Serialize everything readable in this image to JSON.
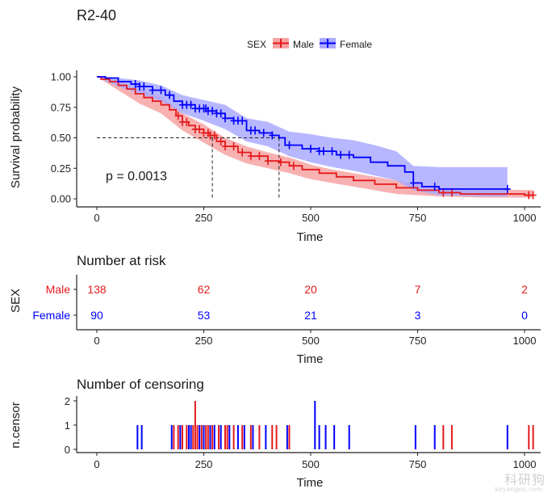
{
  "title": "R2-40",
  "legend": {
    "title": "SEX",
    "entries": [
      {
        "label": "Male",
        "color": "#e41a1c"
      },
      {
        "label": "Female",
        "color": "#0000ff"
      }
    ]
  },
  "colors": {
    "male": "#e41a1c",
    "female": "#0000ff",
    "male_fill": "#f7a3a3",
    "female_fill": "#aaaaff"
  },
  "pvalue": "p = 0.0013",
  "chart_data": [
    {
      "id": "survival",
      "type": "line",
      "title": "",
      "xlabel": "Time",
      "ylabel": "Survival probability",
      "xlim": [
        0,
        1030
      ],
      "ylim": [
        0,
        1.05
      ],
      "xticks": [
        0,
        250,
        500,
        750,
        1000
      ],
      "yticks": [
        0.0,
        0.25,
        0.5,
        0.75,
        1.0
      ],
      "ytick_labels": [
        "0.00",
        "0.25",
        "0.50",
        "0.75",
        "1.00"
      ],
      "median_lines": [
        {
          "series": "Male",
          "x": 270
        },
        {
          "series": "Female",
          "x": 426
        }
      ],
      "series": [
        {
          "name": "Male",
          "color": "#e41a1c",
          "steps": [
            [
              0,
              1.0
            ],
            [
              10,
              0.98
            ],
            [
              30,
              0.96
            ],
            [
              50,
              0.93
            ],
            [
              70,
              0.9
            ],
            [
              90,
              0.86
            ],
            [
              110,
              0.83
            ],
            [
              130,
              0.8
            ],
            [
              150,
              0.77
            ],
            [
              170,
              0.73
            ],
            [
              185,
              0.68
            ],
            [
              200,
              0.63
            ],
            [
              215,
              0.6
            ],
            [
              230,
              0.57
            ],
            [
              250,
              0.54
            ],
            [
              265,
              0.52
            ],
            [
              280,
              0.47
            ],
            [
              300,
              0.43
            ],
            [
              330,
              0.38
            ],
            [
              360,
              0.35
            ],
            [
              400,
              0.31
            ],
            [
              430,
              0.3
            ],
            [
              450,
              0.27
            ],
            [
              480,
              0.24
            ],
            [
              520,
              0.21
            ],
            [
              560,
              0.18
            ],
            [
              600,
              0.15
            ],
            [
              650,
              0.12
            ],
            [
              700,
              0.09
            ],
            [
              750,
              0.07
            ],
            [
              800,
              0.05
            ],
            [
              850,
              0.04
            ],
            [
              900,
              0.04
            ],
            [
              1000,
              0.03
            ],
            [
              1020,
              0.03
            ]
          ],
          "lower": [
            [
              0,
              1.0
            ],
            [
              50,
              0.89
            ],
            [
              100,
              0.78
            ],
            [
              150,
              0.7
            ],
            [
              200,
              0.56
            ],
            [
              250,
              0.46
            ],
            [
              300,
              0.36
            ],
            [
              350,
              0.29
            ],
            [
              400,
              0.25
            ],
            [
              450,
              0.21
            ],
            [
              500,
              0.16
            ],
            [
              550,
              0.13
            ],
            [
              600,
              0.1
            ],
            [
              650,
              0.07
            ],
            [
              700,
              0.04
            ],
            [
              750,
              0.03
            ],
            [
              800,
              0.02
            ],
            [
              900,
              0.01
            ],
            [
              1020,
              0.01
            ]
          ],
          "upper": [
            [
              0,
              1.0
            ],
            [
              50,
              0.97
            ],
            [
              100,
              0.9
            ],
            [
              150,
              0.84
            ],
            [
              200,
              0.7
            ],
            [
              250,
              0.61
            ],
            [
              300,
              0.5
            ],
            [
              350,
              0.43
            ],
            [
              400,
              0.38
            ],
            [
              450,
              0.34
            ],
            [
              500,
              0.28
            ],
            [
              550,
              0.24
            ],
            [
              600,
              0.21
            ],
            [
              650,
              0.18
            ],
            [
              700,
              0.15
            ],
            [
              750,
              0.12
            ],
            [
              800,
              0.1
            ],
            [
              900,
              0.08
            ],
            [
              1020,
              0.07
            ]
          ],
          "censor_times": [
            190,
            200,
            210,
            230,
            240,
            250,
            260,
            265,
            275,
            290,
            300,
            320,
            340,
            360,
            380,
            400,
            430,
            460,
            810,
            830,
            1010,
            1020
          ]
        },
        {
          "name": "Female",
          "color": "#0000ff",
          "steps": [
            [
              0,
              1.0
            ],
            [
              20,
              0.99
            ],
            [
              50,
              0.96
            ],
            [
              80,
              0.94
            ],
            [
              100,
              0.92
            ],
            [
              130,
              0.89
            ],
            [
              160,
              0.85
            ],
            [
              180,
              0.8
            ],
            [
              200,
              0.77
            ],
            [
              230,
              0.74
            ],
            [
              260,
              0.72
            ],
            [
              280,
              0.7
            ],
            [
              300,
              0.66
            ],
            [
              320,
              0.64
            ],
            [
              350,
              0.56
            ],
            [
              380,
              0.54
            ],
            [
              410,
              0.52
            ],
            [
              426,
              0.5
            ],
            [
              440,
              0.44
            ],
            [
              480,
              0.41
            ],
            [
              520,
              0.39
            ],
            [
              560,
              0.36
            ],
            [
              600,
              0.34
            ],
            [
              640,
              0.3
            ],
            [
              680,
              0.27
            ],
            [
              720,
              0.22
            ],
            [
              740,
              0.13
            ],
            [
              760,
              0.1
            ],
            [
              800,
              0.08
            ],
            [
              960,
              0.08
            ]
          ],
          "lower": [
            [
              0,
              1.0
            ],
            [
              50,
              0.92
            ],
            [
              100,
              0.86
            ],
            [
              150,
              0.8
            ],
            [
              200,
              0.7
            ],
            [
              250,
              0.64
            ],
            [
              300,
              0.57
            ],
            [
              350,
              0.47
            ],
            [
              400,
              0.43
            ],
            [
              450,
              0.35
            ],
            [
              500,
              0.3
            ],
            [
              550,
              0.26
            ],
            [
              600,
              0.23
            ],
            [
              650,
              0.19
            ],
            [
              700,
              0.15
            ],
            [
              740,
              0.07
            ],
            [
              800,
              0.03
            ],
            [
              900,
              0.02
            ],
            [
              960,
              0.02
            ]
          ],
          "upper": [
            [
              0,
              1.0
            ],
            [
              50,
              0.99
            ],
            [
              100,
              0.97
            ],
            [
              150,
              0.93
            ],
            [
              200,
              0.85
            ],
            [
              250,
              0.81
            ],
            [
              300,
              0.77
            ],
            [
              350,
              0.66
            ],
            [
              400,
              0.63
            ],
            [
              450,
              0.55
            ],
            [
              500,
              0.53
            ],
            [
              550,
              0.5
            ],
            [
              600,
              0.48
            ],
            [
              650,
              0.44
            ],
            [
              700,
              0.39
            ],
            [
              740,
              0.27
            ],
            [
              800,
              0.26
            ],
            [
              900,
              0.26
            ],
            [
              960,
              0.26
            ]
          ],
          "censor_times": [
            90,
            100,
            110,
            130,
            150,
            170,
            200,
            210,
            220,
            230,
            240,
            250,
            255,
            260,
            270,
            280,
            290,
            300,
            320,
            330,
            340,
            360,
            370,
            390,
            410,
            450,
            500,
            520,
            530,
            550,
            570,
            590,
            740,
            790,
            960
          ]
        }
      ]
    },
    {
      "id": "risk_table",
      "type": "table",
      "title": "Number at risk",
      "xlabel": "Time",
      "ylabel": "SEX",
      "xlim": [
        0,
        1030
      ],
      "xticks": [
        0,
        250,
        500,
        750,
        1000
      ],
      "rows": [
        {
          "label": "Male",
          "color": "#e41a1c",
          "values": [
            138,
            62,
            20,
            7,
            2
          ]
        },
        {
          "label": "Female",
          "color": "#0000ff",
          "values": [
            90,
            53,
            21,
            3,
            0
          ]
        }
      ]
    },
    {
      "id": "censor",
      "type": "bar",
      "title": "Number of censoring",
      "xlabel": "Time",
      "ylabel": "n.censor",
      "xlim": [
        0,
        1030
      ],
      "ylim": [
        0,
        2
      ],
      "xticks": [
        0,
        250,
        500,
        750,
        1000
      ],
      "yticks": [
        0,
        1,
        2
      ],
      "series": [
        {
          "name": "Male",
          "color": "#e41a1c",
          "x": [
            180,
            190,
            200,
            210,
            225,
            230,
            235,
            245,
            255,
            260,
            270,
            285,
            300,
            305,
            320,
            340,
            360,
            380,
            410,
            420,
            450,
            810,
            830,
            1010,
            1020
          ],
          "values": [
            1,
            1,
            1,
            1,
            1,
            2,
            1,
            1,
            1,
            1,
            1,
            1,
            1,
            1,
            1,
            1,
            1,
            1,
            1,
            1,
            1,
            1,
            1,
            1,
            1
          ]
        },
        {
          "name": "Female",
          "color": "#0000ff",
          "x": [
            95,
            105,
            175,
            195,
            215,
            220,
            240,
            250,
            265,
            275,
            290,
            310,
            330,
            345,
            365,
            395,
            445,
            510,
            520,
            535,
            555,
            590,
            745,
            790,
            960
          ],
          "values": [
            1,
            1,
            1,
            1,
            1,
            1,
            1,
            1,
            1,
            1,
            1,
            1,
            1,
            1,
            1,
            1,
            1,
            2,
            1,
            1,
            1,
            1,
            1,
            1,
            1
          ]
        }
      ]
    }
  ],
  "watermark": {
    "text": "科研狗",
    "sub": "keyangou.com"
  }
}
